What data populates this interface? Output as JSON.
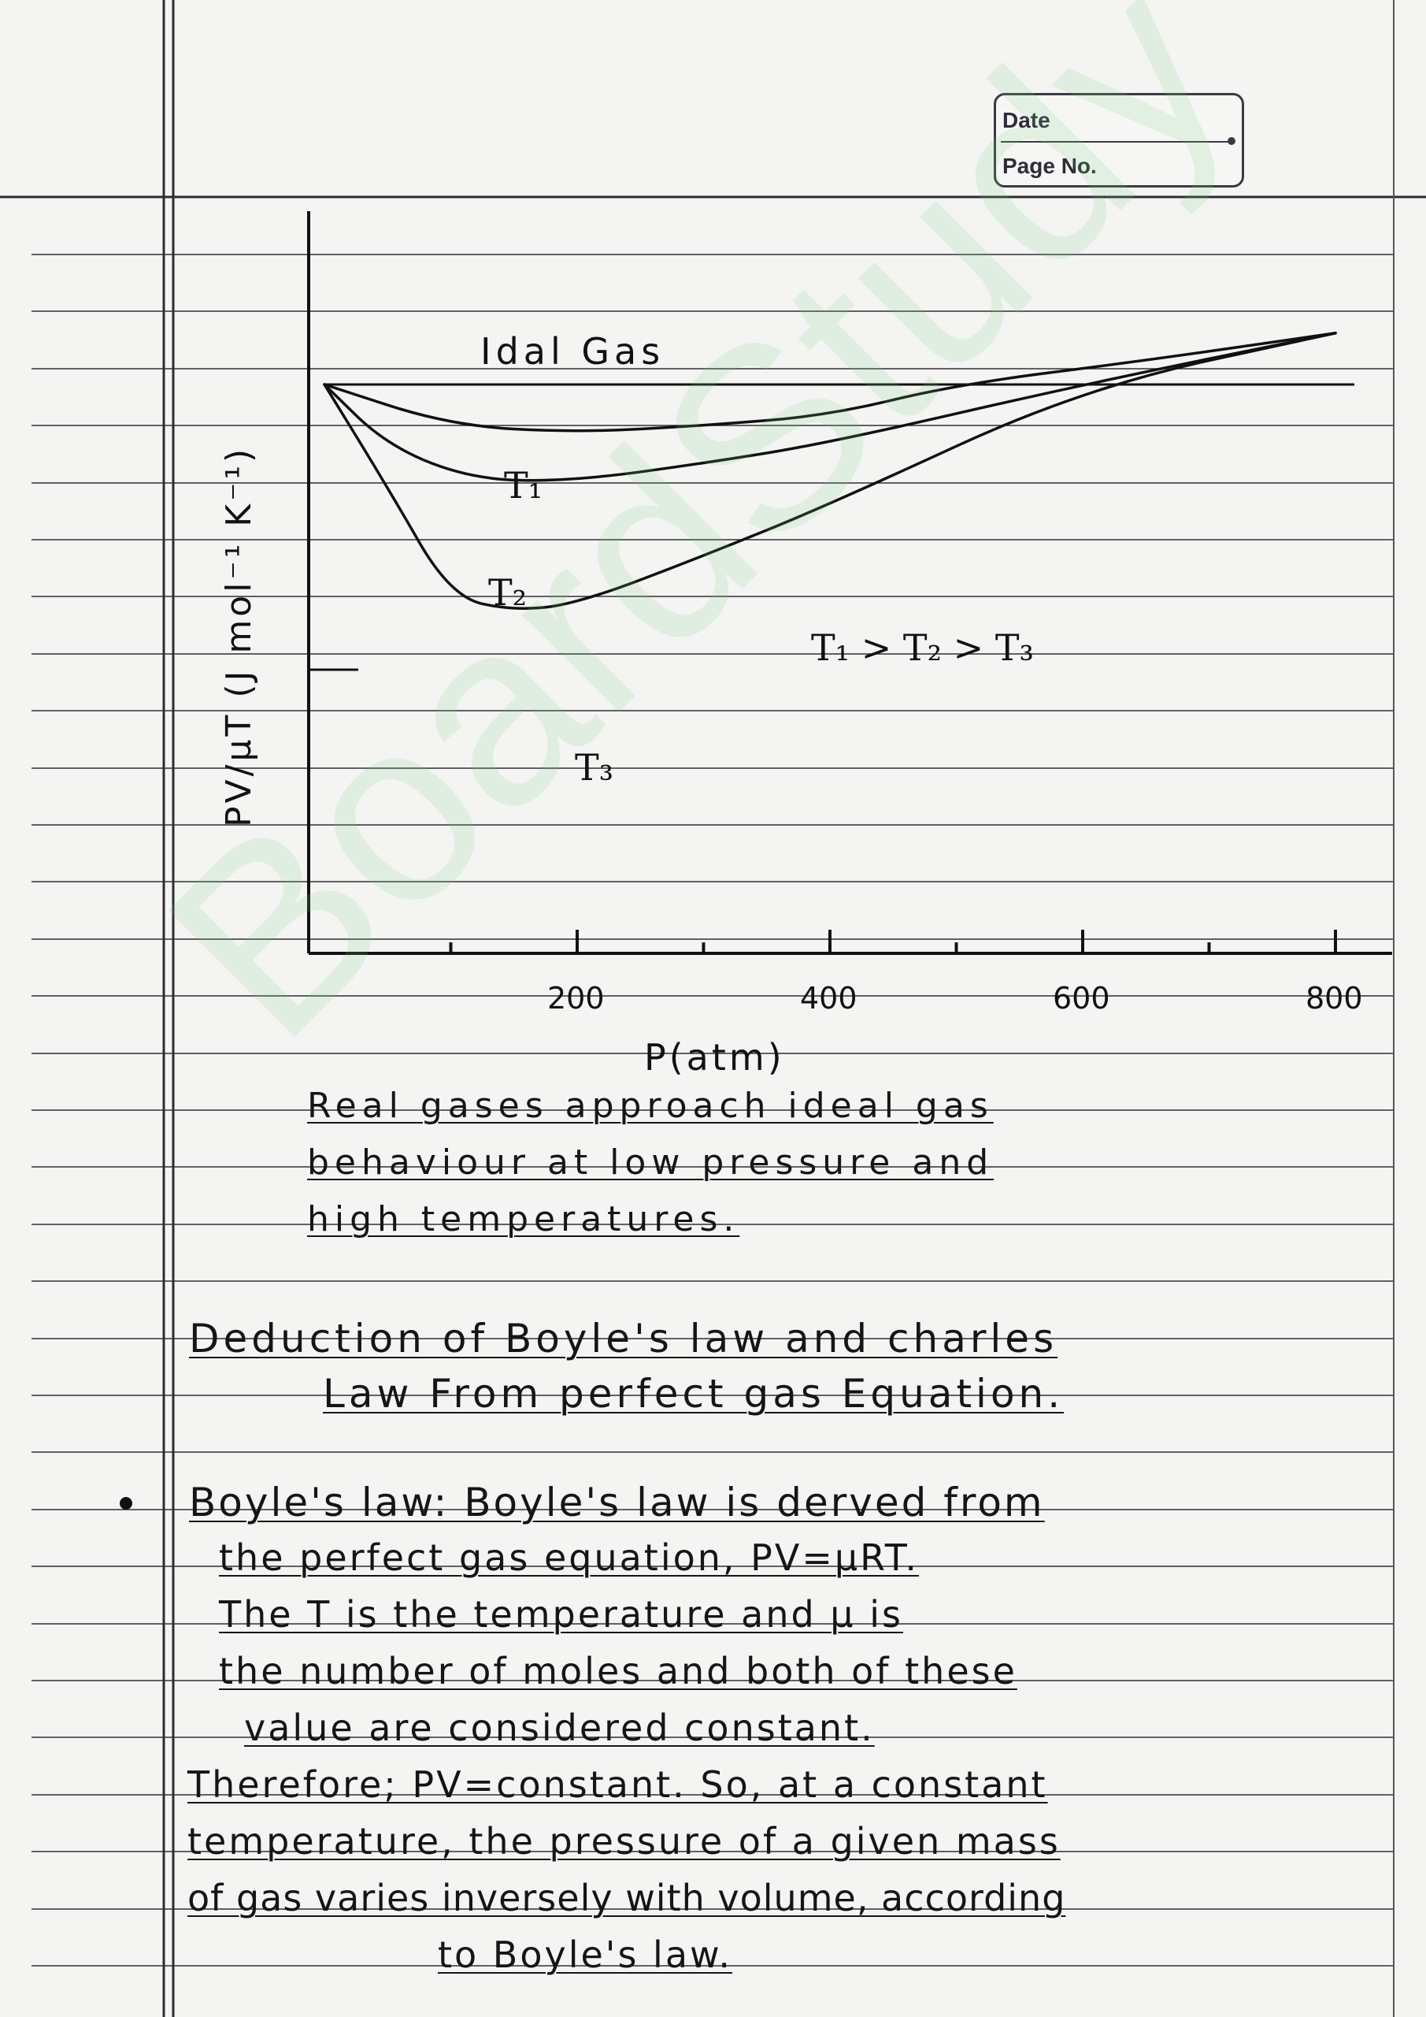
{
  "header": {
    "date_label": "Date",
    "page_label": "Page No."
  },
  "watermark": "BoardStudy",
  "chart_data": {
    "type": "line",
    "xlabel": "P(atm)",
    "ylabel": "PV/μT (J mol⁻¹ K⁻¹)",
    "x_ticks": [
      "200",
      "400",
      "600",
      "800"
    ],
    "xlim": [
      0,
      800
    ],
    "ideal_label": "Idal Gas",
    "series": [
      {
        "name": "T₁",
        "points": [
          [
            0,
            1.0
          ],
          [
            100,
            0.88
          ],
          [
            200,
            0.86
          ],
          [
            300,
            0.88
          ],
          [
            400,
            0.91
          ],
          [
            500,
            1.0
          ],
          [
            650,
            1.07
          ],
          [
            800,
            1.15
          ]
        ]
      },
      {
        "name": "T₂",
        "points": [
          [
            0,
            1.0
          ],
          [
            50,
            0.82
          ],
          [
            120,
            0.72
          ],
          [
            200,
            0.72
          ],
          [
            300,
            0.77
          ],
          [
            400,
            0.83
          ],
          [
            600,
            1.0
          ],
          [
            800,
            1.15
          ]
        ]
      },
      {
        "name": "T₃",
        "points": [
          [
            0,
            1.0
          ],
          [
            50,
            0.7
          ],
          [
            100,
            0.38
          ],
          [
            150,
            0.34
          ],
          [
            200,
            0.36
          ],
          [
            300,
            0.5
          ],
          [
            400,
            0.65
          ],
          [
            600,
            0.99
          ],
          [
            800,
            1.15
          ]
        ]
      }
    ],
    "ideal_value": 1.0,
    "relation_label": "T₁ > T₂ > T₃"
  },
  "text": {
    "caption": [
      "Real gases approach ideal gas",
      "behaviour at low pressure and",
      "high temperatures."
    ],
    "heading": [
      "Deduction of Boyle's law and charles",
      "Law From perfect gas Equation."
    ],
    "body": [
      "Boyle's law: Boyle's law is derved from",
      "the perfect gas equation, PV=μRT.",
      "The T is the temperature and μ is",
      "the number of moles and both of these",
      "value are considered constant.",
      "Therefore; PV=constant. So, at a constant",
      "temperature, the pressure of a given mass",
      "of gas varies inversely with volume, according",
      "to Boyle's law."
    ]
  }
}
